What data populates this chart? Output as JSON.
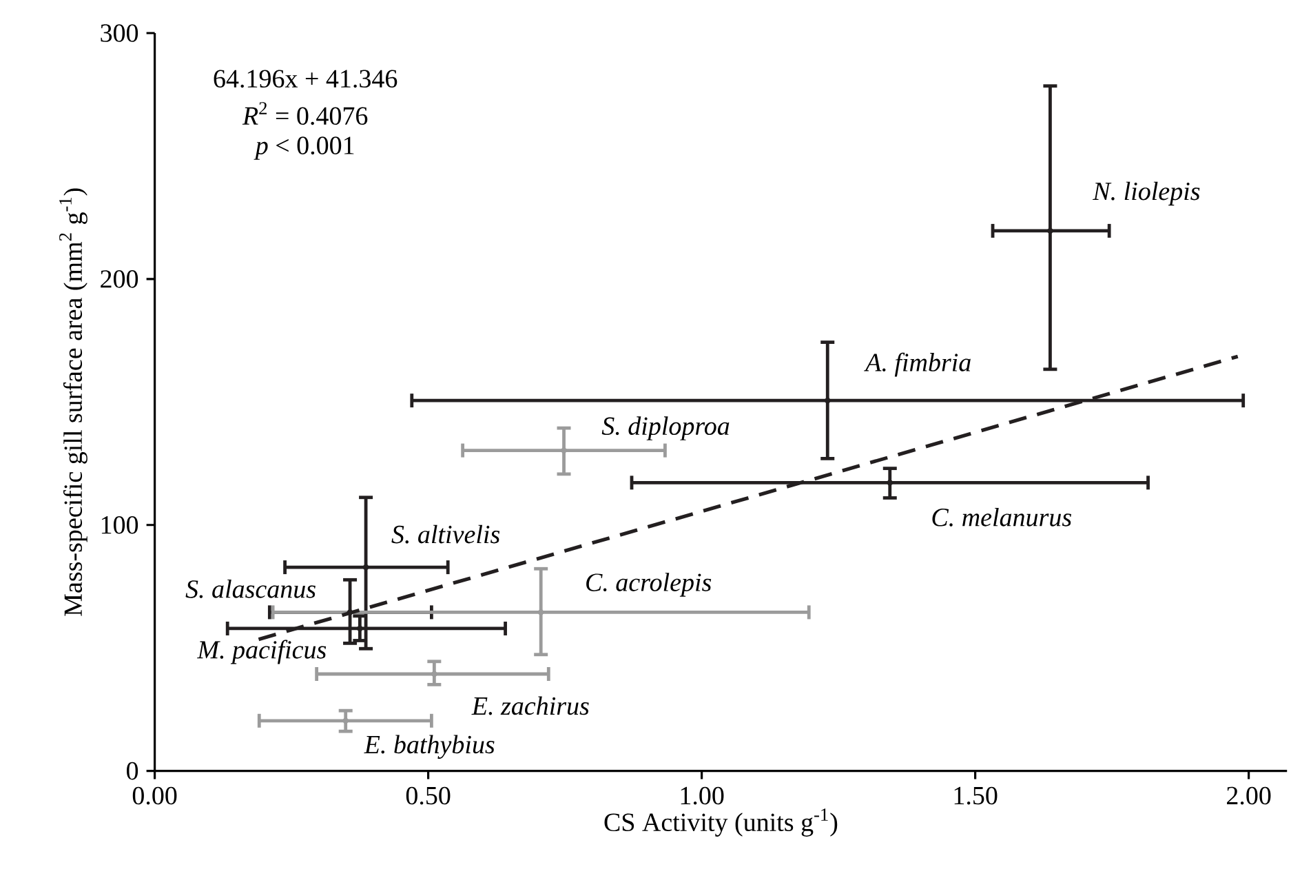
{
  "chart_data": {
    "type": "scatter",
    "xlabel": "CS Activity (units g$^{-1}$)",
    "ylabel": "Mass-specific gill surface area (mm$^{2}$ g$^{-1}$)",
    "xlim": [
      0,
      2.07
    ],
    "ylim": [
      0,
      300
    ],
    "xticks": [
      {
        "value": 0,
        "label": "0.00"
      },
      {
        "value": 0.5,
        "label": "0.50"
      },
      {
        "value": 1,
        "label": "1.00"
      },
      {
        "value": 1.5,
        "label": "1.50"
      },
      {
        "value": 2,
        "label": "2.00"
      }
    ],
    "yticks": [
      0,
      100,
      200,
      300
    ],
    "series": [
      {
        "color": "#231f20",
        "x": [
          1.637,
          1.23,
          1.344,
          0.386,
          0.357,
          0.375
        ],
        "values": [
          219.6,
          150.6,
          117.2,
          82.8,
          64.5,
          57.9
        ],
        "errors": [
          [
            163.3,
            278.5
          ],
          [
            127,
            174.3
          ],
          [
            111,
            123
          ],
          [
            49.7,
            111.2
          ],
          [
            51.9,
            77.7
          ],
          [
            53,
            63
          ]
        ],
        "xerrors": [
          [
            1.532,
            1.745
          ],
          [
            0.47,
            1.99
          ],
          [
            0.872,
            1.816
          ],
          [
            0.238,
            0.536
          ],
          [
            0.21,
            0.506
          ],
          [
            0.133,
            0.641
          ]
        ]
      },
      {
        "color": "#9b9b9b",
        "x": [
          0.748,
          0.706,
          0.511,
          0.349
        ],
        "values": [
          130.3,
          64.5,
          39.4,
          20.4
        ],
        "errors": [
          [
            120.7,
            139.4
          ],
          [
            47.3,
            82.2
          ],
          [
            35.1,
            44.5
          ],
          [
            16.1,
            24.5
          ]
        ],
        "xerrors": [
          [
            0.563,
            0.933
          ],
          [
            0.216,
            1.196
          ],
          [
            0.296,
            0.72
          ],
          [
            0.191,
            0.506
          ]
        ]
      },
      {
        "type": "line",
        "line_style": "dashed",
        "color": "#231f20",
        "x": [
          0.19,
          1.98
        ],
        "values": [
          53.5,
          168.5
        ]
      }
    ],
    "annotations": [
      "64.196x + 41.346",
      "*R*$^{2}$ = 0.4076",
      "*p* < 0.001",
      {
        "text": "N. liolepis",
        "x": 1.637,
        "y": 219.6
      },
      {
        "text": "A. fimbria",
        "x": 1.23,
        "y": 150.6
      },
      {
        "text": "C. melanurus",
        "x": 1.344,
        "y": 117.2
      },
      {
        "text": "S. altivelis",
        "x": 0.386,
        "y": 82.8
      },
      {
        "text": "S. alascanus",
        "x": 0.357,
        "y": 64.5
      },
      {
        "text": "M. pacificus",
        "x": 0.375,
        "y": 57.9
      },
      {
        "text": "S. diploproa",
        "x": 0.748,
        "y": 130.3
      },
      {
        "text": "C. acrolepis",
        "x": 0.706,
        "y": 64.5
      },
      {
        "text": "E. zachirus",
        "x": 0.511,
        "y": 39.4
      },
      {
        "text": "E. bathybius",
        "x": 0.349,
        "y": 20.4
      }
    ]
  }
}
